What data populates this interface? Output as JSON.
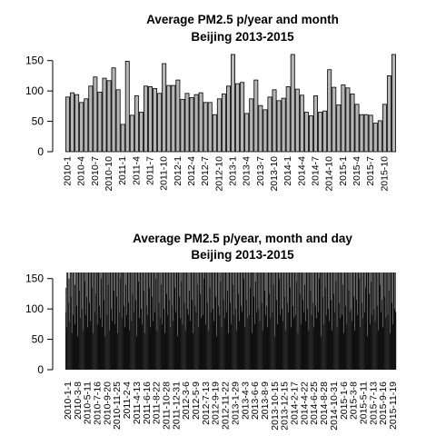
{
  "chart_data": [
    {
      "type": "bar",
      "title": "Average PM2.5 p/year and month",
      "subtitle": "Beijing 2013-2015",
      "xlabel": "",
      "ylabel": "",
      "ylim": [
        0,
        160
      ],
      "y_ticks": [
        0,
        50,
        100,
        150
      ],
      "bar_fill": "#b5b5b5",
      "bar_stroke": "#000000",
      "grid": false,
      "legend": "none",
      "categories": [
        "2010-1",
        "2010-2",
        "2010-3",
        "2010-4",
        "2010-5",
        "2010-6",
        "2010-7",
        "2010-8",
        "2010-9",
        "2010-10",
        "2010-11",
        "2010-12",
        "2011-1",
        "2011-2",
        "2011-3",
        "2011-4",
        "2011-5",
        "2011-6",
        "2011-7",
        "2011-8",
        "2011-9",
        "2011-10",
        "2011-11",
        "2011-12",
        "2012-1",
        "2012-2",
        "2012-3",
        "2012-4",
        "2012-5",
        "2012-6",
        "2012-7",
        "2012-8",
        "2012-9",
        "2012-10",
        "2012-11",
        "2012-12",
        "2013-1",
        "2013-2",
        "2013-3",
        "2013-4",
        "2013-5",
        "2013-6",
        "2013-7",
        "2013-8",
        "2013-9",
        "2013-10",
        "2013-11",
        "2013-12",
        "2014-1",
        "2014-2",
        "2014-3",
        "2014-4",
        "2014-5",
        "2014-6",
        "2014-7",
        "2014-8",
        "2014-9",
        "2014-10",
        "2014-11",
        "2014-12",
        "2015-1",
        "2015-2",
        "2015-3",
        "2015-4",
        "2015-5",
        "2015-6",
        "2015-7",
        "2015-8",
        "2015-9",
        "2015-10",
        "2015-11",
        "2015-12"
      ],
      "tick_labels": [
        "2010-1",
        "2010-4",
        "2010-7",
        "2010-10",
        "2011-1",
        "2011-4",
        "2011-7",
        "2011-10",
        "2012-1",
        "2012-4",
        "2012-7",
        "2012-10",
        "2013-1",
        "2013-4",
        "2013-7",
        "2013-10",
        "2014-1",
        "2014-4",
        "2014-7",
        "2014-10",
        "2015-1",
        "2015-4",
        "2015-7",
        "2015-10"
      ],
      "values": [
        90,
        97,
        94,
        81,
        87,
        108,
        123,
        98,
        121,
        117,
        138,
        102,
        45,
        149,
        60,
        92,
        65,
        108,
        107,
        104,
        96,
        145,
        109,
        109,
        118,
        86,
        96,
        89,
        94,
        97,
        81,
        81,
        61,
        87,
        95,
        108,
        175,
        112,
        114,
        63,
        87,
        118,
        76,
        69,
        90,
        102,
        84,
        88,
        107,
        165,
        103,
        93,
        65,
        59,
        92,
        65,
        67,
        135,
        106,
        77,
        110,
        105,
        95,
        78,
        61,
        61,
        60,
        47,
        51,
        78,
        125,
        175
      ]
    },
    {
      "type": "bar",
      "title": "Average PM2.5 p/year, month and day",
      "subtitle": "Beijing 2013-2015",
      "xlabel": "",
      "ylabel": "",
      "ylim": [
        0,
        160
      ],
      "y_ticks": [
        0,
        50,
        100,
        150
      ],
      "bar_fill": "#111111",
      "grid": false,
      "legend": "none",
      "tick_labels": [
        "2010-1-1",
        "2010-3-8",
        "2010-5-11",
        "2010-7-16",
        "2010-9-20",
        "2010-11-25",
        "2011-2-4",
        "2011-4-13",
        "2011-6-16",
        "2011-8-22",
        "2011-10-28",
        "2011-12-31",
        "2012-3-6",
        "2012-5-9",
        "2012-7-13",
        "2012-9-19",
        "2012-11-22",
        "2013-1-29",
        "2013-4-3",
        "2013-6-6",
        "2013-8-9",
        "2013-10-15",
        "2013-12-15",
        "2014-2-17",
        "2014-4-22",
        "2014-6-25",
        "2014-8-28",
        "2014-10-31",
        "2015-1-6",
        "2015-3-8",
        "2015-5-11",
        "2015-7-13",
        "2015-9-16",
        "2015-11-19"
      ],
      "values": [
        135,
        95,
        160,
        70,
        160,
        160,
        110,
        150,
        80,
        160,
        160,
        120,
        160,
        60,
        160,
        160,
        90,
        160,
        160,
        140,
        75,
        160,
        160,
        160,
        105,
        160,
        55,
        160,
        160,
        130,
        160,
        85,
        160,
        160,
        160,
        100,
        160,
        65,
        160,
        160,
        145,
        160,
        90,
        160,
        120,
        160,
        160,
        70,
        160,
        160,
        160,
        110,
        160,
        80,
        160,
        160,
        135,
        160,
        60,
        160,
        160,
        160,
        95,
        160,
        125,
        160,
        160,
        75,
        160,
        160,
        160,
        105,
        160,
        85,
        160,
        160,
        150,
        160,
        70,
        160,
        160,
        160,
        115,
        160,
        55,
        160,
        160,
        160,
        90,
        160,
        140,
        160,
        160,
        65,
        160,
        160,
        160,
        100,
        160,
        80,
        160,
        160,
        130,
        160,
        75,
        160,
        160,
        160,
        120,
        160,
        60,
        160,
        160,
        160,
        95,
        160,
        150,
        160,
        160,
        85,
        160,
        160,
        160,
        105,
        160,
        70,
        160,
        160,
        140,
        160,
        90,
        160,
        160,
        160,
        110,
        160,
        65,
        160,
        160,
        160,
        80,
        160,
        125,
        160,
        160,
        95,
        160,
        160,
        160,
        115,
        160,
        55,
        160,
        160,
        145,
        160,
        85,
        160,
        160,
        160,
        100,
        160,
        75,
        160,
        160,
        160,
        130,
        160,
        60,
        160,
        160,
        160,
        105,
        160,
        90,
        160,
        160,
        135,
        160,
        70,
        160,
        160,
        160,
        120,
        160,
        80,
        160,
        160,
        160,
        95,
        160,
        150,
        160,
        160,
        65,
        160,
        160,
        160,
        110,
        160,
        85,
        160,
        160,
        140,
        160,
        75,
        160,
        160,
        160,
        100,
        160,
        60,
        160,
        160,
        160,
        125,
        160,
        90,
        160,
        160,
        115,
        160,
        70,
        160,
        160,
        160,
        105,
        160,
        80,
        160,
        160,
        160,
        135,
        160,
        95,
        160,
        160,
        55,
        160,
        160,
        160,
        120,
        160,
        85,
        160,
        160,
        145,
        160,
        75,
        160,
        160,
        160,
        110,
        160,
        65,
        160,
        160,
        160,
        100,
        160,
        90,
        160,
        160,
        130,
        160,
        80,
        160,
        160,
        160,
        115,
        160,
        60,
        160,
        160,
        160,
        105,
        160,
        95,
        160,
        160,
        140,
        160,
        70,
        160,
        160,
        160,
        125,
        160,
        85,
        160,
        160,
        160,
        90,
        160,
        150,
        160,
        160,
        75,
        160,
        160,
        160,
        110,
        160,
        65,
        160,
        160,
        135,
        160,
        95,
        160,
        160,
        160,
        100,
        160,
        80,
        160,
        160,
        160,
        120,
        160,
        55,
        160,
        160,
        160,
        105,
        160,
        90,
        160,
        160,
        145,
        160,
        70,
        160,
        160,
        160,
        115,
        160,
        85,
        160,
        160,
        160,
        95,
        160,
        130,
        160,
        160,
        60,
        160,
        160,
        160,
        110,
        160,
        75,
        160,
        160,
        140,
        160,
        90,
        160,
        160,
        160,
        100,
        160,
        65,
        160,
        160,
        160,
        125,
        160,
        80,
        160,
        160,
        160,
        105,
        160,
        95,
        160,
        160,
        150,
        160,
        70,
        160,
        160,
        160,
        115,
        160,
        85,
        160,
        160,
        160,
        90,
        160,
        135,
        160,
        160,
        60,
        160,
        160,
        160,
        120,
        160,
        75,
        160,
        160,
        145,
        160,
        95,
        160,
        160,
        160,
        100,
        160,
        80,
        160,
        160,
        160,
        110,
        160,
        65,
        160,
        160,
        160,
        130,
        160,
        90,
        160,
        160,
        105,
        160,
        70,
        160,
        160,
        160,
        125,
        160,
        85,
        160,
        160,
        160,
        95,
        160,
        140,
        160,
        160,
        55,
        160,
        160,
        160,
        115,
        160,
        75,
        160,
        160,
        150,
        160,
        90,
        160,
        160,
        160,
        100,
        160,
        80,
        160,
        160,
        160,
        120,
        160,
        65,
        160,
        160,
        160,
        110,
        160,
        95,
        160,
        160,
        135,
        160,
        70,
        160,
        160,
        160,
        105,
        160,
        85,
        160,
        160,
        160,
        90,
        160,
        145,
        160,
        160,
        60,
        160,
        160,
        160,
        125,
        160,
        75,
        160,
        160,
        160,
        115,
        160,
        95,
        160,
        160,
        140,
        160,
        80,
        160,
        160,
        160,
        100,
        160,
        65,
        160,
        160,
        160,
        130,
        160,
        90,
        160,
        160,
        110,
        160,
        70,
        160,
        160,
        160,
        105,
        160,
        85,
        160,
        160,
        160,
        95,
        160,
        150,
        160,
        160,
        55,
        160,
        160,
        160,
        120,
        160,
        75,
        160,
        160,
        135,
        160,
        90,
        160,
        160,
        160,
        100,
        160,
        80,
        160,
        160,
        160,
        115,
        160,
        65,
        160,
        160,
        160,
        125,
        160,
        95,
        160,
        160,
        145,
        160,
        70,
        160,
        160,
        160,
        110,
        160,
        85,
        160,
        160,
        160,
        90,
        160,
        140,
        160,
        160,
        60,
        160,
        160,
        160,
        105,
        160,
        75,
        160,
        160,
        160,
        130,
        160,
        95,
        160,
        160,
        100,
        160,
        80,
        160,
        160,
        160,
        120,
        160,
        65,
        160,
        160,
        160,
        115,
        160,
        90,
        160,
        160,
        150,
        160,
        70,
        160,
        160,
        160,
        110,
        160,
        85,
        160,
        160,
        160,
        95,
        160,
        135,
        160,
        160,
        55,
        160,
        160,
        160,
        125,
        160,
        75,
        160,
        160,
        145,
        160,
        90,
        160,
        160,
        160,
        100,
        160,
        80,
        160,
        160,
        160,
        105,
        160,
        65,
        160,
        160,
        160,
        140,
        160,
        95,
        160,
        160,
        115,
        160,
        70,
        160,
        160,
        160,
        120,
        160,
        85,
        160,
        160,
        160,
        90,
        160,
        130,
        160,
        160,
        60,
        160,
        160,
        160,
        110,
        160,
        75,
        160,
        160,
        160,
        100,
        160,
        95
      ]
    }
  ]
}
